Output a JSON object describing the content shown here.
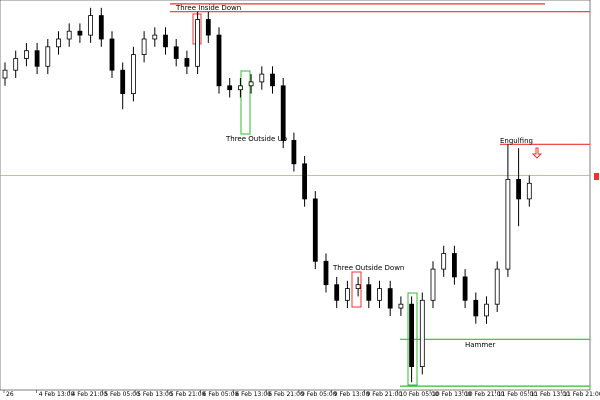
{
  "chart_data": {
    "type": "candlestick",
    "ylim": [
      0,
      100
    ],
    "open": [
      80,
      82,
      85,
      87,
      83,
      88,
      90,
      92,
      91,
      96,
      90,
      82,
      76,
      86,
      90,
      91,
      88,
      85,
      83,
      95,
      91,
      78,
      77,
      78,
      79,
      81,
      78,
      64,
      58,
      49,
      33,
      27,
      23,
      26,
      27,
      23,
      26,
      21,
      22,
      6,
      23,
      31,
      35,
      29,
      23,
      19,
      22,
      31,
      54,
      49
    ],
    "high": [
      84,
      87,
      89,
      89,
      90,
      92,
      94,
      94,
      98,
      98,
      92,
      84,
      88,
      92,
      93,
      93,
      90,
      87,
      97,
      97,
      93,
      80,
      80,
      81,
      83,
      83,
      80,
      66,
      60,
      51,
      35,
      29,
      28,
      29,
      29,
      28,
      28,
      24,
      24,
      25,
      33,
      37,
      37,
      31,
      25,
      24,
      33,
      63,
      62,
      55
    ],
    "low": [
      78,
      80,
      83,
      81,
      81,
      86,
      88,
      89,
      89,
      88,
      80,
      72,
      74,
      84,
      88,
      86,
      83,
      81,
      81,
      89,
      76,
      75,
      75,
      76,
      77,
      76,
      62,
      56,
      47,
      31,
      25,
      21,
      21,
      24,
      21,
      21,
      19,
      19,
      2,
      4,
      21,
      29,
      27,
      21,
      17,
      17,
      20,
      29,
      42,
      47
    ],
    "close": [
      82,
      85,
      87,
      83,
      88,
      90,
      92,
      91,
      96,
      90,
      82,
      76,
      86,
      90,
      91,
      88,
      85,
      83,
      95,
      91,
      78,
      77,
      78,
      79,
      81,
      78,
      64,
      58,
      49,
      33,
      27,
      23,
      26,
      27,
      23,
      26,
      21,
      22,
      6,
      23,
      31,
      35,
      29,
      23,
      19,
      22,
      31,
      54,
      49,
      53
    ],
    "x_labels": [
      "26",
      "4 Feb 13:00",
      "4 Feb 21:00",
      "5 Feb 05:00",
      "5 Feb 13:00",
      "5 Feb 21:00",
      "6 Feb 05:00",
      "6 Feb 13:00",
      "6 Feb 21:00",
      "9 Feb 05:00",
      "9 Feb 13:00",
      "9 Feb 21:00",
      "10 Feb 05:00",
      "10 Feb 13:00",
      "10 Feb 21:00",
      "11 Feb 05:00",
      "11 Feb 13:00",
      "11 Feb 21:00"
    ],
    "levels": [
      {
        "value": 99,
        "color": "#e33"
      },
      {
        "value": 97,
        "color": "#e33"
      },
      {
        "value": 63,
        "color": "#e33"
      },
      {
        "value": 55,
        "color": "#e88"
      },
      {
        "value": 13,
        "color": "#3b3"
      },
      {
        "value": 1,
        "color": "#3b3"
      }
    ],
    "annotations": [
      {
        "text": "Three Inside Down",
        "color": "#e33"
      },
      {
        "text": "Three Outside Up",
        "color": "#3b3"
      },
      {
        "text": "Three Outside Down",
        "color": "#e33"
      },
      {
        "text": "Engulfing",
        "color": "#e33"
      },
      {
        "text": "Hammer",
        "color": "#3b3"
      }
    ]
  }
}
